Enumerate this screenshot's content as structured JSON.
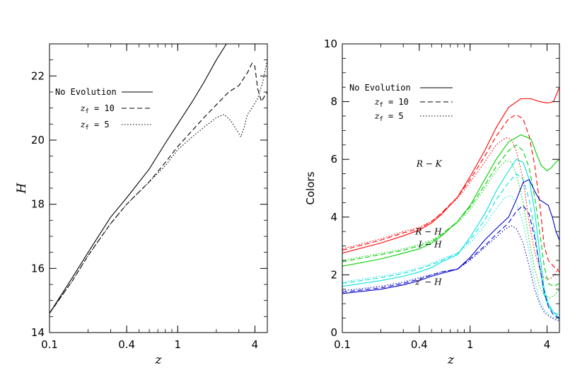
{
  "chart_data": [
    {
      "type": "line",
      "xscale": "log",
      "xlim": [
        0.1,
        5
      ],
      "ylim": [
        14,
        23
      ],
      "xticks": [
        0.1,
        0.4,
        1,
        4
      ],
      "xtick_labels": [
        "0.1",
        "0.4",
        "1",
        "4"
      ],
      "yticks": [
        14,
        16,
        18,
        20,
        22
      ],
      "ytick_labels": [
        "14",
        "16",
        "18",
        "20",
        "22"
      ],
      "xlabel": "z",
      "ylabel": "H",
      "legend": [
        {
          "label": "No Evolution",
          "dash": "solid"
        },
        {
          "label_main": "z",
          "label_sub": "f",
          "label_rest": " = 10",
          "dash": "dashed"
        },
        {
          "label_main": "z",
          "label_sub": "f",
          "label_rest": " =  5",
          "dash": "dotted"
        }
      ],
      "series": [
        {
          "style": "solid",
          "color": "#000000",
          "x": [
            0.1,
            0.15,
            0.2,
            0.3,
            0.4,
            0.6,
            0.8,
            1.0,
            1.3,
            1.6,
            2.0,
            2.4
          ],
          "y": [
            14.6,
            15.7,
            16.5,
            17.6,
            18.2,
            19.1,
            19.9,
            20.5,
            21.2,
            21.8,
            22.5,
            23.0
          ]
        },
        {
          "style": "dashed",
          "color": "#000000",
          "x": [
            0.1,
            0.15,
            0.2,
            0.3,
            0.4,
            0.6,
            0.8,
            1.0,
            1.3,
            1.6,
            2.0,
            2.5,
            3.0,
            3.5,
            3.8,
            4.0,
            4.2,
            4.5,
            4.8,
            5.0
          ],
          "y": [
            14.6,
            15.6,
            16.4,
            17.4,
            18.0,
            18.7,
            19.3,
            19.8,
            20.3,
            20.7,
            21.1,
            21.5,
            21.7,
            22.1,
            22.4,
            22.3,
            21.6,
            21.2,
            21.4,
            21.5
          ]
        },
        {
          "style": "dotted",
          "color": "#000000",
          "x": [
            0.1,
            0.15,
            0.2,
            0.3,
            0.4,
            0.6,
            0.8,
            1.0,
            1.3,
            1.6,
            2.0,
            2.3,
            2.6,
            2.9,
            3.1,
            3.3,
            3.5,
            3.8,
            4.2,
            4.6,
            5.0
          ],
          "y": [
            14.6,
            15.6,
            16.4,
            17.4,
            18.0,
            18.7,
            19.2,
            19.7,
            20.1,
            20.4,
            20.7,
            20.8,
            20.6,
            20.3,
            20.1,
            20.4,
            20.8,
            21.0,
            21.3,
            21.8,
            22.5
          ]
        }
      ]
    },
    {
      "type": "line",
      "xscale": "log",
      "xlim": [
        0.1,
        5
      ],
      "ylim": [
        0,
        10
      ],
      "xticks": [
        0.1,
        0.4,
        1,
        4
      ],
      "xtick_labels": [
        "0.1",
        "0.4",
        "1",
        "4"
      ],
      "yticks": [
        0,
        2,
        4,
        6,
        8,
        10
      ],
      "ytick_labels": [
        "0",
        "2",
        "4",
        "6",
        "8",
        "10"
      ],
      "xlabel": "z",
      "ylabel": "Colors",
      "legend": [
        {
          "label": "No Evolution",
          "dash": "solid"
        },
        {
          "label_main": "z",
          "label_sub": "f",
          "label_rest": " = 10",
          "dash": "dashed"
        },
        {
          "label_main": "z",
          "label_sub": "f",
          "label_rest": " =  5",
          "dash": "dotted"
        }
      ],
      "annotations": [
        {
          "text": "R − K",
          "x": 0.6,
          "y": 5.75
        },
        {
          "text": "R − H",
          "x": 0.6,
          "y": 3.4
        },
        {
          "text": "I − H",
          "x": 0.6,
          "y": 2.95
        },
        {
          "text": "z′ − H",
          "x": 0.6,
          "y": 1.65
        }
      ],
      "series": [
        {
          "name": "R − K",
          "style": "solid",
          "color": "#ff0000",
          "x": [
            0.1,
            0.2,
            0.3,
            0.4,
            0.5,
            0.6,
            0.8,
            1.0,
            1.3,
            1.6,
            2.0,
            2.5,
            3.0,
            3.5,
            4.0,
            4.5,
            5.0
          ],
          "y": [
            2.75,
            3.1,
            3.35,
            3.55,
            3.8,
            4.1,
            4.7,
            5.4,
            6.3,
            7.1,
            7.8,
            8.1,
            8.1,
            8.0,
            7.95,
            8.0,
            8.5
          ]
        },
        {
          "name": "R − K",
          "style": "dashed",
          "color": "#ff0000",
          "x": [
            0.1,
            0.2,
            0.3,
            0.4,
            0.5,
            0.6,
            0.8,
            1.0,
            1.3,
            1.6,
            2.0,
            2.3,
            2.6,
            2.9,
            3.2,
            3.5,
            3.8,
            4.1,
            4.5,
            5.0
          ],
          "y": [
            2.85,
            3.2,
            3.45,
            3.6,
            3.85,
            4.15,
            4.7,
            5.3,
            6.1,
            6.8,
            7.4,
            7.55,
            7.4,
            6.8,
            5.8,
            4.5,
            3.0,
            2.5,
            2.3,
            2.1
          ]
        },
        {
          "name": "R − K",
          "style": "dotted",
          "color": "#ff0000",
          "x": [
            0.1,
            0.2,
            0.3,
            0.4,
            0.5,
            0.6,
            0.8,
            1.0,
            1.3,
            1.6,
            1.9,
            2.1,
            2.3,
            2.6,
            2.9,
            3.2,
            3.5,
            3.8,
            4.2,
            4.6,
            5.0
          ],
          "y": [
            2.9,
            3.25,
            3.5,
            3.65,
            3.85,
            4.15,
            4.65,
            5.2,
            5.9,
            6.5,
            6.75,
            6.7,
            6.3,
            5.3,
            3.8,
            2.8,
            2.2,
            1.9,
            1.85,
            2.0,
            2.3
          ]
        },
        {
          "name": "R − H",
          "style": "solid",
          "color": "#00d000",
          "x": [
            0.1,
            0.2,
            0.3,
            0.4,
            0.5,
            0.6,
            0.8,
            1.0,
            1.3,
            1.6,
            2.0,
            2.5,
            3.0,
            3.3,
            3.6,
            4.0,
            4.3,
            4.7,
            5.0
          ],
          "y": [
            2.3,
            2.55,
            2.75,
            2.9,
            3.1,
            3.35,
            3.85,
            4.4,
            5.3,
            6.0,
            6.6,
            6.85,
            6.7,
            6.2,
            5.8,
            5.6,
            5.7,
            5.9,
            6.0
          ]
        },
        {
          "name": "R − H",
          "style": "dashed",
          "color": "#00d000",
          "x": [
            0.1,
            0.2,
            0.3,
            0.4,
            0.5,
            0.6,
            0.8,
            1.0,
            1.3,
            1.6,
            2.0,
            2.3,
            2.6,
            2.9,
            3.2,
            3.5,
            3.8,
            4.1,
            4.5,
            5.0
          ],
          "y": [
            2.45,
            2.7,
            2.85,
            3.0,
            3.15,
            3.4,
            3.85,
            4.35,
            5.1,
            5.75,
            6.3,
            6.5,
            6.3,
            5.7,
            4.7,
            3.5,
            2.3,
            1.7,
            1.6,
            1.7
          ]
        },
        {
          "name": "R − H",
          "style": "dotted",
          "color": "#00d000",
          "x": [
            0.1,
            0.2,
            0.3,
            0.4,
            0.5,
            0.6,
            0.8,
            1.0,
            1.3,
            1.6,
            1.9,
            2.1,
            2.3,
            2.6,
            2.9,
            3.2,
            3.5,
            3.8,
            4.2,
            4.6,
            5.0
          ],
          "y": [
            2.5,
            2.75,
            2.9,
            3.05,
            3.2,
            3.4,
            3.8,
            4.25,
            5.0,
            5.6,
            5.95,
            5.9,
            5.5,
            4.5,
            3.2,
            2.2,
            1.6,
            1.3,
            1.2,
            1.3,
            1.5
          ]
        },
        {
          "name": "I − H",
          "style": "solid",
          "color": "#00e0e0",
          "x": [
            0.1,
            0.2,
            0.3,
            0.4,
            0.5,
            0.6,
            0.8,
            1.0,
            1.3,
            1.6,
            2.0,
            2.3,
            2.6,
            2.9,
            3.2,
            3.5,
            3.8,
            4.1,
            4.5,
            5.0
          ],
          "y": [
            1.6,
            1.8,
            1.95,
            2.1,
            2.25,
            2.45,
            2.7,
            3.3,
            4.1,
            4.9,
            5.6,
            6.0,
            5.9,
            5.3,
            4.2,
            2.8,
            1.5,
            1.0,
            0.7,
            0.5
          ]
        },
        {
          "name": "I − H",
          "style": "dashed",
          "color": "#00e0e0",
          "x": [
            0.1,
            0.2,
            0.3,
            0.4,
            0.5,
            0.6,
            0.8,
            1.0,
            1.3,
            1.6,
            2.0,
            2.3,
            2.6,
            2.9,
            3.2,
            3.5,
            3.8,
            4.1,
            4.5,
            5.0
          ],
          "y": [
            1.7,
            1.9,
            2.05,
            2.2,
            2.35,
            2.5,
            2.75,
            3.2,
            3.9,
            4.6,
            5.2,
            5.5,
            5.3,
            4.6,
            3.5,
            2.3,
            1.3,
            0.9,
            0.7,
            0.6
          ]
        },
        {
          "name": "I − H",
          "style": "dotted",
          "color": "#00e0e0",
          "x": [
            0.1,
            0.2,
            0.3,
            0.4,
            0.5,
            0.6,
            0.8,
            1.0,
            1.3,
            1.6,
            1.9,
            2.1,
            2.3,
            2.6,
            2.9,
            3.2,
            3.5,
            3.8,
            4.2,
            4.6,
            5.0
          ],
          "y": [
            1.75,
            1.95,
            2.1,
            2.25,
            2.4,
            2.55,
            2.75,
            3.1,
            3.7,
            4.3,
            4.7,
            4.75,
            4.5,
            3.8,
            2.8,
            1.8,
            1.1,
            0.8,
            0.6,
            0.5,
            0.45
          ]
        },
        {
          "name": "z′ − H",
          "style": "solid",
          "color": "#0000cc",
          "x": [
            0.1,
            0.2,
            0.3,
            0.4,
            0.5,
            0.6,
            0.8,
            1.0,
            1.3,
            1.6,
            2.0,
            2.3,
            2.6,
            2.9,
            3.2,
            3.5,
            3.8,
            4.1,
            4.4,
            4.7,
            5.0
          ],
          "y": [
            1.35,
            1.5,
            1.65,
            1.8,
            1.95,
            2.05,
            2.2,
            2.6,
            3.2,
            3.6,
            4.0,
            4.6,
            5.2,
            5.3,
            4.9,
            4.6,
            4.5,
            4.4,
            4.0,
            3.5,
            3.2
          ]
        },
        {
          "name": "z′ − H",
          "style": "dashed",
          "color": "#0000cc",
          "x": [
            0.1,
            0.2,
            0.3,
            0.4,
            0.5,
            0.6,
            0.8,
            1.0,
            1.3,
            1.6,
            2.0,
            2.3,
            2.6,
            2.9,
            3.2,
            3.5,
            3.8,
            4.1,
            4.5,
            5.0
          ],
          "y": [
            1.4,
            1.55,
            1.7,
            1.85,
            2.0,
            2.1,
            2.2,
            2.55,
            3.0,
            3.4,
            3.8,
            4.2,
            4.4,
            4.1,
            3.3,
            2.3,
            1.4,
            0.9,
            0.6,
            0.5
          ]
        },
        {
          "name": "z′ − H",
          "style": "dotted",
          "color": "#0000cc",
          "x": [
            0.1,
            0.2,
            0.3,
            0.4,
            0.5,
            0.6,
            0.8,
            1.0,
            1.3,
            1.6,
            1.9,
            2.1,
            2.3,
            2.6,
            2.9,
            3.2,
            3.5,
            3.8,
            4.2,
            4.6,
            5.0
          ],
          "y": [
            1.45,
            1.6,
            1.75,
            1.9,
            2.0,
            2.1,
            2.2,
            2.5,
            2.95,
            3.3,
            3.6,
            3.7,
            3.6,
            3.1,
            2.3,
            1.5,
            1.0,
            0.7,
            0.55,
            0.45,
            0.4
          ]
        }
      ]
    }
  ]
}
